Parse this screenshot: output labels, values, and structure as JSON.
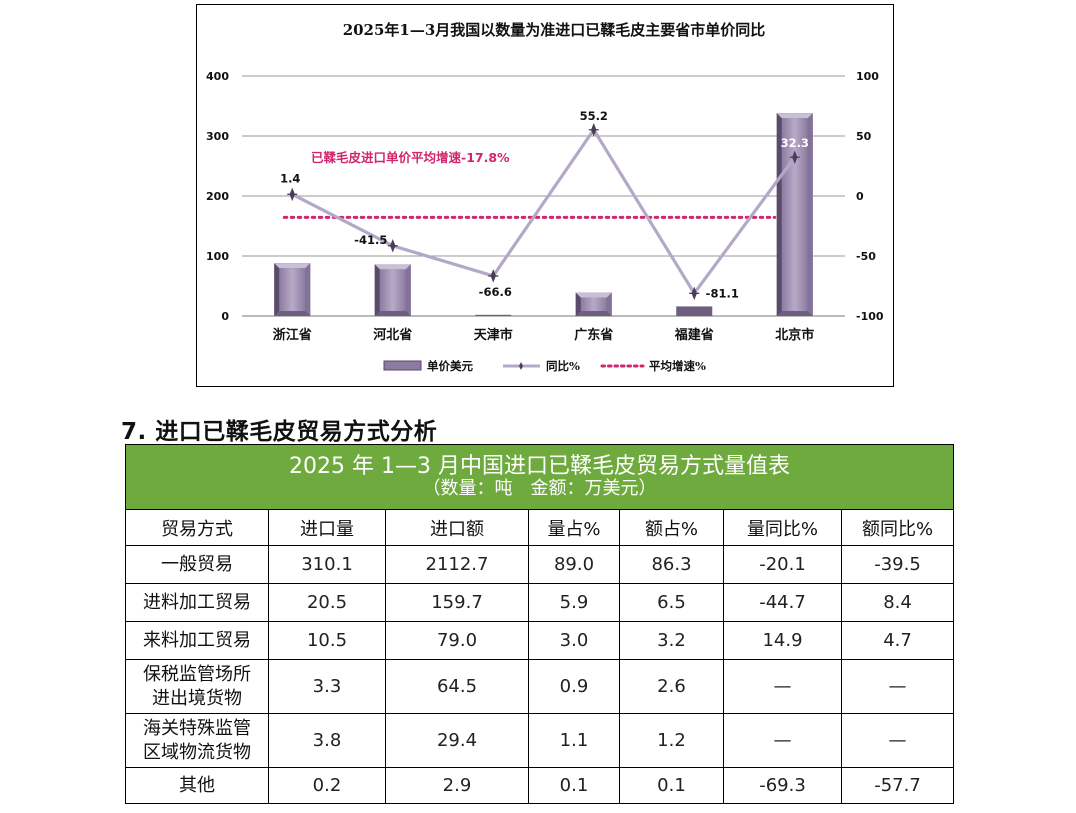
{
  "chart": {
    "title": "2025年1—3月我国以数量为准进口已鞣毛皮主要省市单价同比",
    "annotation": "已鞣毛皮进口单价平均增速-17.8%",
    "legend": [
      "单价美元",
      "同比%",
      "平均增速%"
    ],
    "colors": {
      "bar": "#a89ab8",
      "bar_dark": "#6e5e80",
      "line": "#b4a8c8",
      "avg": "#d0266e",
      "axis_text": "#111111"
    }
  },
  "chart_data": {
    "type": "bar+line",
    "categories": [
      "浙江省",
      "河北省",
      "天津市",
      "广东省",
      "福建省",
      "北京市"
    ],
    "series": [
      {
        "name": "单价美元",
        "type": "bar",
        "axis": "left",
        "values": [
          88,
          86,
          2,
          39,
          16,
          338
        ]
      },
      {
        "name": "同比%",
        "type": "line",
        "axis": "right",
        "values": [
          1.4,
          -41.5,
          -66.6,
          55.2,
          -81.1,
          32.3
        ],
        "labels": [
          "1.4",
          "-41.5",
          "-66.6",
          "55.2",
          "-81.1",
          "32.3"
        ]
      },
      {
        "name": "平均增速%",
        "type": "line",
        "axis": "right",
        "style": "dotted",
        "values": [
          -17.8,
          -17.8,
          -17.8,
          -17.8,
          -17.8,
          -17.8
        ]
      }
    ],
    "left_axis": {
      "min": 0,
      "max": 400,
      "ticks": [
        0,
        100,
        200,
        300,
        400
      ]
    },
    "right_axis": {
      "min": -100,
      "max": 100,
      "ticks": [
        -100,
        -50,
        0,
        50,
        100
      ]
    },
    "grid": true,
    "legend_position": "bottom"
  },
  "section": {
    "heading": "7. 进口已鞣毛皮贸易方式分析"
  },
  "table": {
    "title": "2025 年 1—3 月中国进口已鞣毛皮贸易方式量值表",
    "subtitle": "（数量：吨　金额：万美元）",
    "headers": [
      "贸易方式",
      "进口量",
      "进口额",
      "量占%",
      "额占%",
      "量同比%",
      "额同比%"
    ],
    "rows": [
      {
        "label": [
          "一般贸易"
        ],
        "cells": [
          "310.1",
          "2112.7",
          "89.0",
          "86.3",
          "-20.1",
          "-39.5"
        ]
      },
      {
        "label": [
          "进料加工贸易"
        ],
        "cells": [
          "20.5",
          "159.7",
          "5.9",
          "6.5",
          "-44.7",
          "8.4"
        ]
      },
      {
        "label": [
          "来料加工贸易"
        ],
        "cells": [
          "10.5",
          "79.0",
          "3.0",
          "3.2",
          "14.9",
          "4.7"
        ]
      },
      {
        "label": [
          "保税监管场所",
          "进出境货物"
        ],
        "cells": [
          "3.3",
          "64.5",
          "0.9",
          "2.6",
          "—",
          "—"
        ]
      },
      {
        "label": [
          "海关特殊监管",
          "区域物流货物"
        ],
        "cells": [
          "3.8",
          "29.4",
          "1.1",
          "1.2",
          "—",
          "—"
        ]
      },
      {
        "label": [
          "其他"
        ],
        "cells": [
          "0.2",
          "2.9",
          "0.1",
          "0.1",
          "-69.3",
          "-57.7"
        ]
      }
    ]
  }
}
